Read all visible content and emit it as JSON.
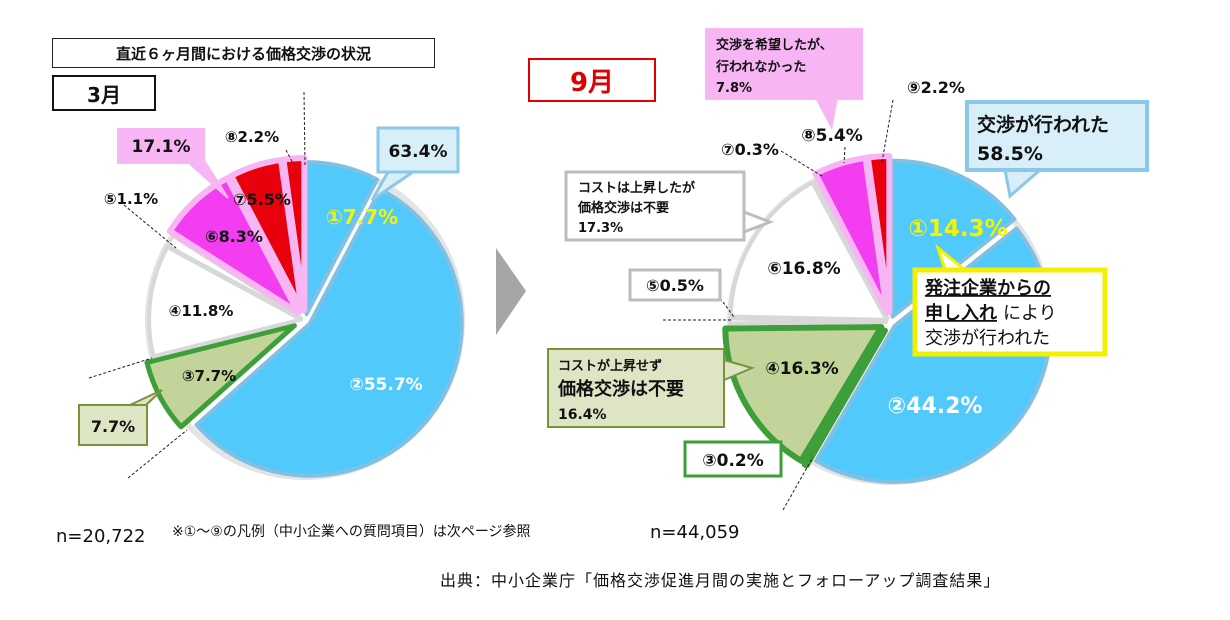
{
  "header": {
    "title": "直近６ヶ月間における価格交渉の状況"
  },
  "footer": {
    "n_march": "n=20,722",
    "note": "※①～⑨の凡例（中小企業への質問項目）は次ページ参照",
    "n_september": "n=44,059",
    "source": "出典：中小企業庁「価格交渉促進月間の実施とフォローアップ調査結果」"
  },
  "colors": {
    "blue": "#52c9fb",
    "blue_dark": "#3aa7de",
    "olive": "#c3d49a",
    "olive_border": "#3e9e3a",
    "white": "#ffffff",
    "magenta": "#f23ef0",
    "red": "#e8000c",
    "pink_box": "#f7b6f3",
    "lightblue_box": "#d8eef8",
    "yellow": "#f5f500"
  },
  "chart_data": [
    {
      "type": "pie",
      "title": "3月",
      "slices": [
        {
          "label": "①7.7%",
          "value": 7.7
        },
        {
          "label": "②55.7%",
          "value": 55.7
        },
        {
          "label": "③7.7%",
          "value": 7.7
        },
        {
          "label": "④11.8%",
          "value": 11.8
        },
        {
          "label": "⑤1.1%",
          "value": 1.1
        },
        {
          "label": "⑥8.3%",
          "value": 8.3
        },
        {
          "label": "⑦5.5%",
          "value": 5.5
        },
        {
          "label": "⑧2.2%",
          "value": 2.2
        }
      ],
      "callouts": {
        "negotiated": "63.4%",
        "not_requested": "17.1%",
        "not_needed": "7.7%"
      }
    },
    {
      "type": "pie",
      "title": "9月",
      "slices": [
        {
          "label": "①14.3%",
          "value": 14.3
        },
        {
          "label": "②44.2%",
          "value": 44.2
        },
        {
          "label": "③0.2%",
          "value": 0.2
        },
        {
          "label": "④16.3%",
          "value": 16.3
        },
        {
          "label": "⑤0.5%",
          "value": 0.5
        },
        {
          "label": "⑥16.8%",
          "value": 16.8
        },
        {
          "label": "⑦0.3%",
          "value": 0.3
        },
        {
          "label": "⑧5.4%",
          "value": 5.4
        },
        {
          "label": "⑨2.2%",
          "value": 2.2
        }
      ],
      "callouts": {
        "negotiated_line1": "交渉が行われた",
        "negotiated_line2": "58.5%",
        "wanted_line1": "交渉を希望したが、",
        "wanted_line2": "行われなかった",
        "wanted_line3": "7.8%",
        "cost_up_line1": "コストは上昇したが",
        "cost_up_line2": "価格交渉は不要",
        "cost_up_line3": "17.3%",
        "cost_flat_line1": "コストが上昇せず",
        "cost_flat_line2": "価格交渉は不要",
        "cost_flat_line3": "16.4%",
        "buyer_line1": "発注企業からの",
        "buyer_line2a": "申し入れ",
        "buyer_line2b": "により",
        "buyer_line3": "交渉が行われた"
      }
    }
  ]
}
